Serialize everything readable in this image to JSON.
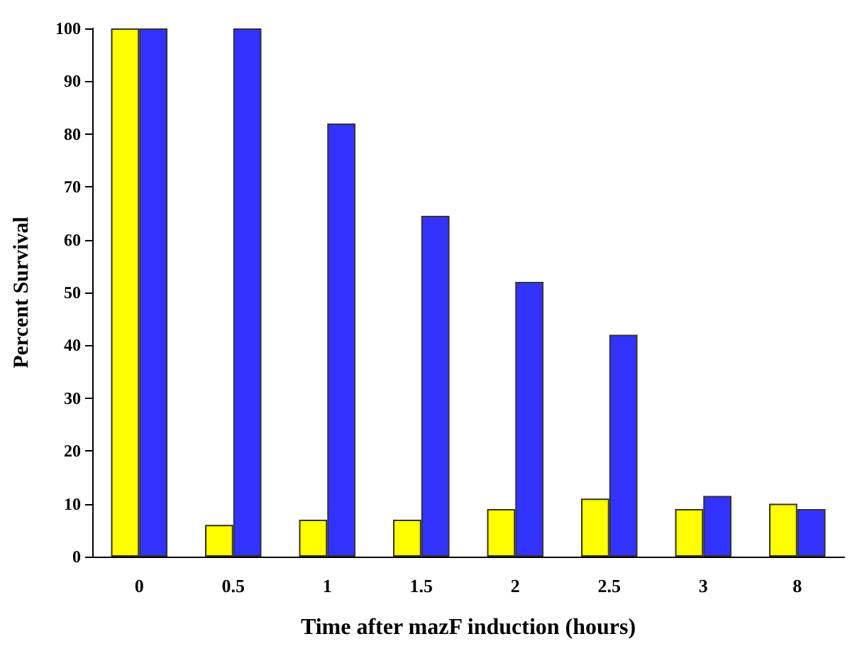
{
  "chart_data": {
    "type": "bar",
    "xlabel": "Time after mazF induction (hours)",
    "ylabel": "Percent Survival",
    "categories": [
      "0",
      "0.5",
      "1",
      "1.5",
      "2",
      "2.5",
      "3",
      "8"
    ],
    "series": [
      {
        "color": "#ffff00",
        "values": [
          100,
          6,
          7,
          7,
          9,
          11,
          9,
          10
        ]
      },
      {
        "color": "#3333ff",
        "values": [
          100,
          100,
          82,
          64.5,
          52,
          42,
          11.5,
          9
        ]
      }
    ],
    "ylim": [
      0,
      100
    ],
    "yticks": [
      0,
      10,
      20,
      30,
      40,
      50,
      60,
      70,
      80,
      90,
      100
    ],
    "grid": false
  }
}
